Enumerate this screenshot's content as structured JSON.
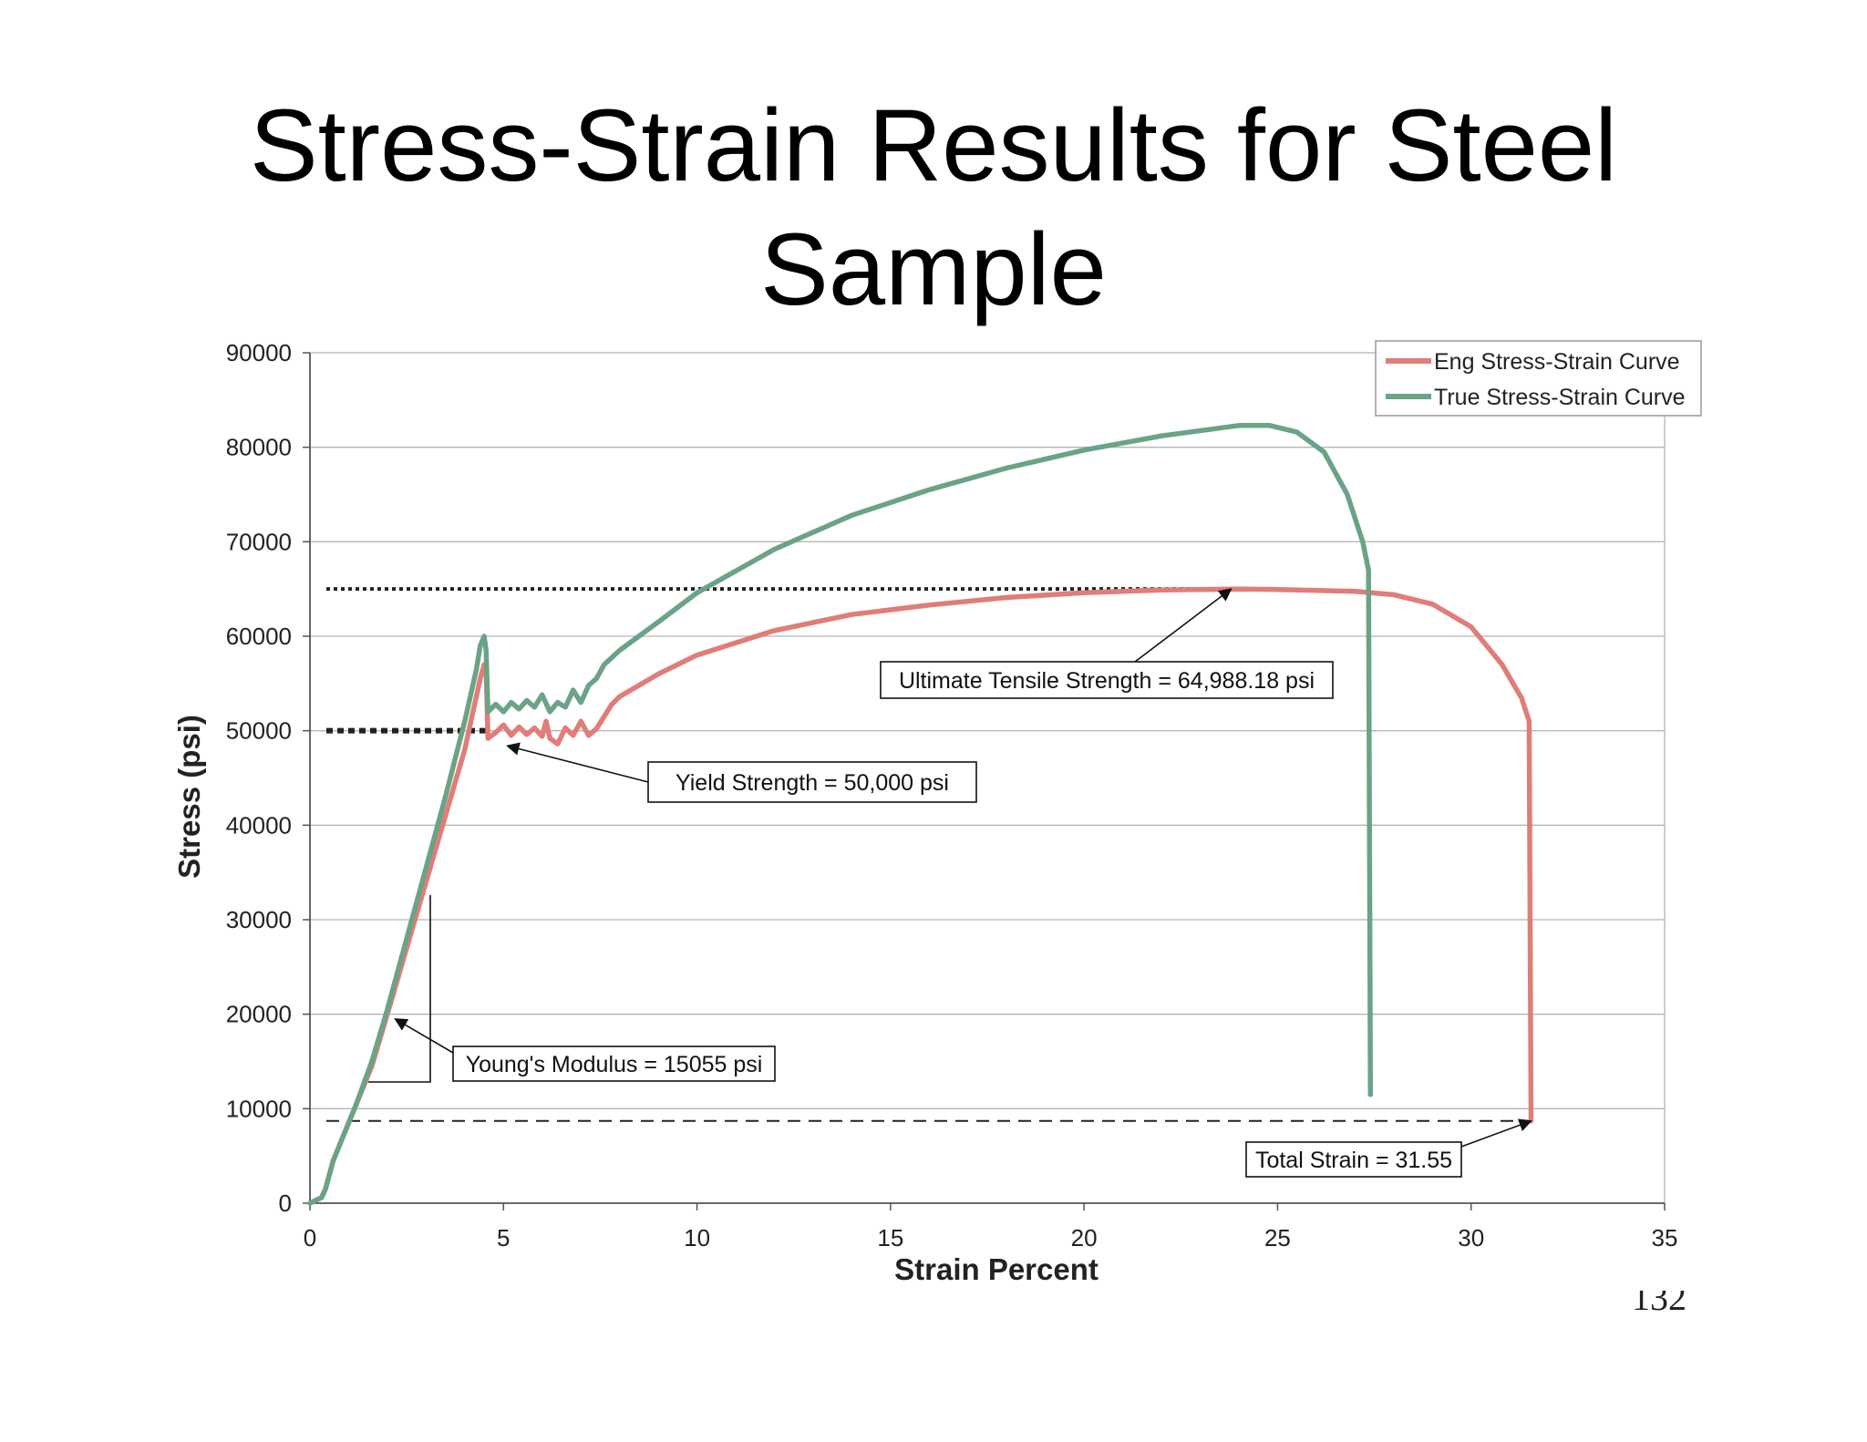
{
  "slide": {
    "title_line1": "Stress-Strain Results for Steel",
    "title_line2": "Sample",
    "page_number": "132"
  },
  "chart_data": {
    "type": "line",
    "title": "",
    "xlabel": "Strain Percent",
    "ylabel": "Stress (psi)",
    "xlim": [
      0,
      35
    ],
    "ylim": [
      0,
      90000
    ],
    "xticks": [
      0,
      5,
      10,
      15,
      20,
      25,
      30,
      35
    ],
    "yticks": [
      0,
      10000,
      20000,
      30000,
      40000,
      50000,
      60000,
      70000,
      80000,
      90000
    ],
    "grid": "horizontal",
    "legend_position": "top-right",
    "series": [
      {
        "name": "Eng Stress-Strain Curve",
        "color": "#e07d78",
        "points": [
          [
            0,
            0
          ],
          [
            0.3,
            600
          ],
          [
            0.4,
            1500
          ],
          [
            0.6,
            4500
          ],
          [
            0.9,
            7500
          ],
          [
            1.2,
            10500
          ],
          [
            1.6,
            14500
          ],
          [
            2.0,
            20000
          ],
          [
            2.5,
            27000
          ],
          [
            3.0,
            34000
          ],
          [
            3.5,
            41000
          ],
          [
            4.0,
            48000
          ],
          [
            4.4,
            55500
          ],
          [
            4.5,
            57000
          ],
          [
            4.55,
            56500
          ],
          [
            4.6,
            49200
          ],
          [
            4.8,
            49800
          ],
          [
            5.0,
            50600
          ],
          [
            5.2,
            49500
          ],
          [
            5.4,
            50400
          ],
          [
            5.6,
            49600
          ],
          [
            5.8,
            50300
          ],
          [
            6.0,
            49400
          ],
          [
            6.1,
            51000
          ],
          [
            6.2,
            49200
          ],
          [
            6.4,
            48600
          ],
          [
            6.6,
            50300
          ],
          [
            6.8,
            49500
          ],
          [
            7.0,
            51000
          ],
          [
            7.2,
            49500
          ],
          [
            7.4,
            50200
          ],
          [
            7.6,
            51500
          ],
          [
            7.8,
            52800
          ],
          [
            8.0,
            53600
          ],
          [
            9.0,
            56000
          ],
          [
            10.0,
            58000
          ],
          [
            12.0,
            60600
          ],
          [
            14.0,
            62300
          ],
          [
            16.0,
            63300
          ],
          [
            18.0,
            64100
          ],
          [
            20.0,
            64600
          ],
          [
            22.0,
            64900
          ],
          [
            24.0,
            65000
          ],
          [
            25.0,
            64950
          ],
          [
            26.0,
            64850
          ],
          [
            27.0,
            64750
          ],
          [
            28.0,
            64400
          ],
          [
            29.0,
            63400
          ],
          [
            30.0,
            61000
          ],
          [
            30.8,
            57000
          ],
          [
            31.3,
            53500
          ],
          [
            31.5,
            51000
          ],
          [
            31.55,
            8700
          ]
        ]
      },
      {
        "name": "True Stress-Strain Curve",
        "color": "#6aa386",
        "points": [
          [
            0,
            0
          ],
          [
            0.3,
            600
          ],
          [
            0.4,
            1500
          ],
          [
            0.6,
            4500
          ],
          [
            0.9,
            7500
          ],
          [
            1.2,
            10500
          ],
          [
            1.6,
            15000
          ],
          [
            2.0,
            20500
          ],
          [
            2.5,
            28000
          ],
          [
            3.0,
            35500
          ],
          [
            3.5,
            43000
          ],
          [
            4.0,
            51000
          ],
          [
            4.3,
            56500
          ],
          [
            4.4,
            59000
          ],
          [
            4.5,
            60000
          ],
          [
            4.55,
            58500
          ],
          [
            4.6,
            52000
          ],
          [
            4.8,
            52800
          ],
          [
            5.0,
            52000
          ],
          [
            5.2,
            53000
          ],
          [
            5.4,
            52300
          ],
          [
            5.6,
            53200
          ],
          [
            5.8,
            52500
          ],
          [
            6.0,
            53800
          ],
          [
            6.2,
            52000
          ],
          [
            6.4,
            53000
          ],
          [
            6.6,
            52500
          ],
          [
            6.8,
            54300
          ],
          [
            7.0,
            53000
          ],
          [
            7.2,
            54800
          ],
          [
            7.4,
            55500
          ],
          [
            7.6,
            57000
          ],
          [
            8.0,
            58500
          ],
          [
            9.0,
            61500
          ],
          [
            10.0,
            64600
          ],
          [
            12.0,
            69200
          ],
          [
            14.0,
            72800
          ],
          [
            16.0,
            75500
          ],
          [
            18.0,
            77800
          ],
          [
            20.0,
            79700
          ],
          [
            22.0,
            81200
          ],
          [
            24.0,
            82300
          ],
          [
            24.8,
            82300
          ],
          [
            25.5,
            81600
          ],
          [
            26.2,
            79500
          ],
          [
            26.8,
            75000
          ],
          [
            27.2,
            70000
          ],
          [
            27.35,
            67000
          ],
          [
            27.4,
            11500
          ]
        ]
      }
    ],
    "reference_lines": [
      {
        "y": 65000,
        "style": "dotted",
        "x_end": 23.8
      },
      {
        "y": 50000,
        "style": "dotted",
        "x_end": 4.6
      },
      {
        "y": 8700,
        "style": "dashed",
        "x_end": 31.55
      }
    ],
    "annotations": [
      {
        "text": "Ultimate Tensile Strength = 64,988.18 psi",
        "target": [
          23.8,
          65000
        ]
      },
      {
        "text": "Yield Strength = 50,000 psi",
        "target": [
          5.1,
          48400
        ]
      },
      {
        "text": "Young's Modulus = 15055 psi",
        "target": [
          2.2,
          19500
        ]
      },
      {
        "text": "Total Strain = 31.55",
        "target": [
          31.55,
          8700
        ]
      }
    ]
  }
}
